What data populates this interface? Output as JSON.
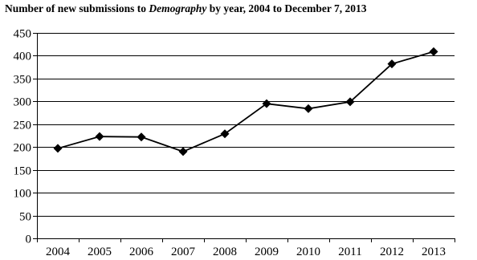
{
  "chart_data": {
    "type": "line",
    "title_prefix": "Number of new submissions to ",
    "title_italic": "Demography",
    "title_suffix": " by year, 2004 to December 7, 2013",
    "xlabel": "",
    "ylabel": "",
    "categories": [
      "2004",
      "2005",
      "2006",
      "2007",
      "2008",
      "2009",
      "2010",
      "2011",
      "2012",
      "2013"
    ],
    "series": [
      {
        "values": [
          197,
          223,
          222,
          190,
          229,
          295,
          284,
          299,
          382,
          409
        ]
      }
    ],
    "ylim": [
      0,
      450
    ],
    "yticks": [
      0,
      50,
      100,
      150,
      200,
      250,
      300,
      350,
      400,
      450
    ],
    "grid": "horizontal",
    "marker": "diamond",
    "line_color": "#000000",
    "grid_color": "#000000"
  }
}
